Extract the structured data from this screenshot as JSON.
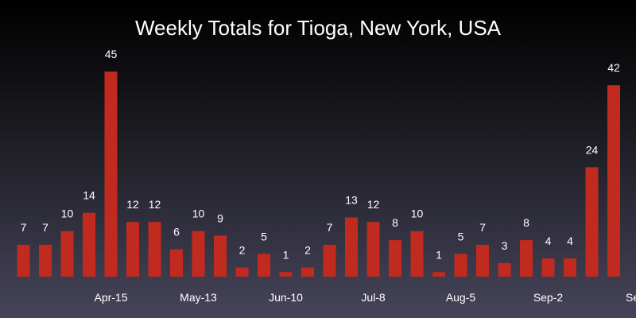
{
  "chart_data": {
    "type": "bar",
    "title": "Weekly Totals for Tioga, New York, USA",
    "xlabel": "",
    "ylabel": "",
    "ylim": [
      0,
      45
    ],
    "grid": false,
    "values": [
      7,
      7,
      10,
      14,
      45,
      12,
      12,
      6,
      10,
      9,
      2,
      5,
      1,
      2,
      7,
      13,
      12,
      8,
      10,
      1,
      5,
      7,
      3,
      8,
      4,
      4,
      24,
      42
    ],
    "x_tick_labels": [
      {
        "index": 4,
        "label": "Apr-15"
      },
      {
        "index": 8,
        "label": "May-13"
      },
      {
        "index": 12,
        "label": "Jun-10"
      },
      {
        "index": 16,
        "label": "Jul-8"
      },
      {
        "index": 20,
        "label": "Aug-5"
      },
      {
        "index": 24,
        "label": "Sep-2"
      },
      {
        "index": 28,
        "label": "Sep"
      }
    ],
    "colors": {
      "bar": "#c12a1f",
      "text": "#ffffff"
    }
  }
}
